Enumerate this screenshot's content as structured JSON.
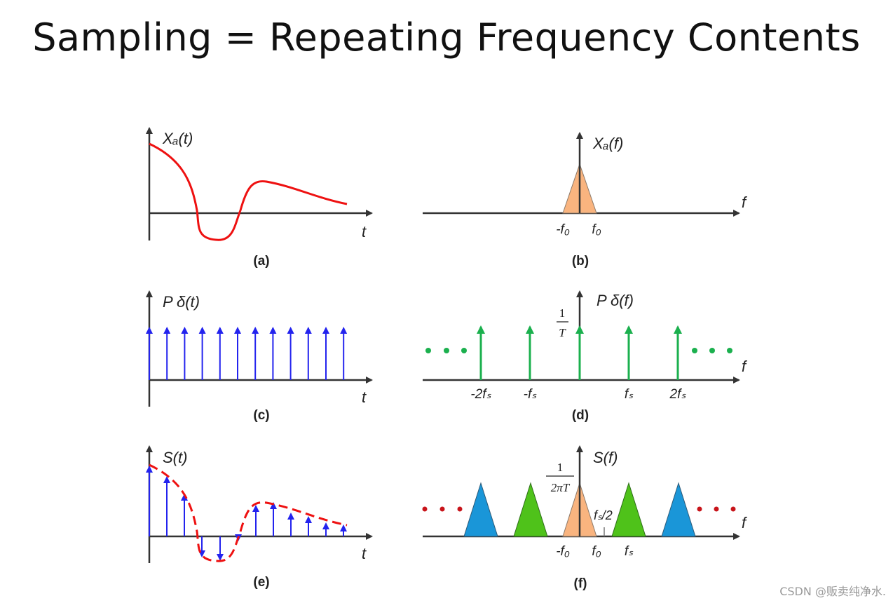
{
  "title": "Sampling = Repeating Frequency Contents",
  "watermark": "CSDN @贩卖纯净水.",
  "colors": {
    "signal": "#ee1111",
    "impulse_time": "#2323ee",
    "impulse_freq": "#1bb04e",
    "spectrum_base": "#f9b47f",
    "spectrum_first": "#4fc21a",
    "spectrum_second": "#1a96d8",
    "dots_green": "#1bb04e",
    "dots_red": "#c8141a",
    "axis": "#333333"
  },
  "panels": {
    "a": {
      "caption": "(a)",
      "ylabel": "Xₐ(t)",
      "xlabel": "t"
    },
    "b": {
      "caption": "(b)",
      "ylabel": "Xₐ(f)",
      "xlabel": "f",
      "tick_neg": "-f₀",
      "tick_pos": "f₀"
    },
    "c": {
      "caption": "(c)",
      "ylabel": "P δ(t)",
      "xlabel": "t",
      "impulse_count": 12
    },
    "d": {
      "caption": "(d)",
      "ylabel": "P δ(f)",
      "xlabel": "f",
      "amp_num": "1",
      "amp_den": "T",
      "ticks": [
        "-2fₛ",
        "-fₛ",
        "fₛ",
        "2fₛ"
      ]
    },
    "e": {
      "caption": "(e)",
      "ylabel": "S(t)",
      "xlabel": "t"
    },
    "f": {
      "caption": "(f)",
      "ylabel": "S(f)",
      "xlabel": "f",
      "amp_num": "1",
      "amp_den": "2πT",
      "half_label": "fₛ/2",
      "ticks": [
        "-f₀",
        "f₀",
        "fₛ"
      ]
    }
  }
}
